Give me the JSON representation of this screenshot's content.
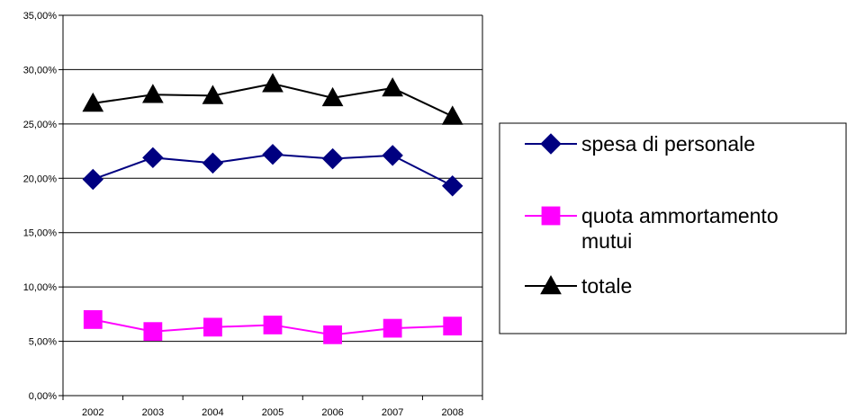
{
  "chart_data": {
    "type": "line",
    "categories": [
      "2002",
      "2003",
      "2004",
      "2005",
      "2006",
      "2007",
      "2008"
    ],
    "ylim": [
      0,
      0.35
    ],
    "yticks": [
      "0,00%",
      "5,00%",
      "10,00%",
      "15,00%",
      "20,00%",
      "25,00%",
      "30,00%",
      "35,00%"
    ],
    "grid": true,
    "legend_position": "right",
    "series": [
      {
        "name": "spesa di personale",
        "name_lines": [
          "spesa di personale"
        ],
        "color": "#000080",
        "marker": "diamond",
        "values": [
          0.199,
          0.219,
          0.214,
          0.222,
          0.218,
          0.221,
          0.193
        ]
      },
      {
        "name": "quota ammortamento mutui",
        "name_lines": [
          "quota ammortamento",
          "mutui"
        ],
        "color": "#ff00ff",
        "marker": "square",
        "values": [
          0.07,
          0.059,
          0.063,
          0.065,
          0.056,
          0.062,
          0.064
        ]
      },
      {
        "name": "totale",
        "name_lines": [
          "totale"
        ],
        "color": "#000000",
        "marker": "triangle",
        "values": [
          0.269,
          0.277,
          0.276,
          0.287,
          0.274,
          0.283,
          0.257
        ]
      }
    ]
  }
}
